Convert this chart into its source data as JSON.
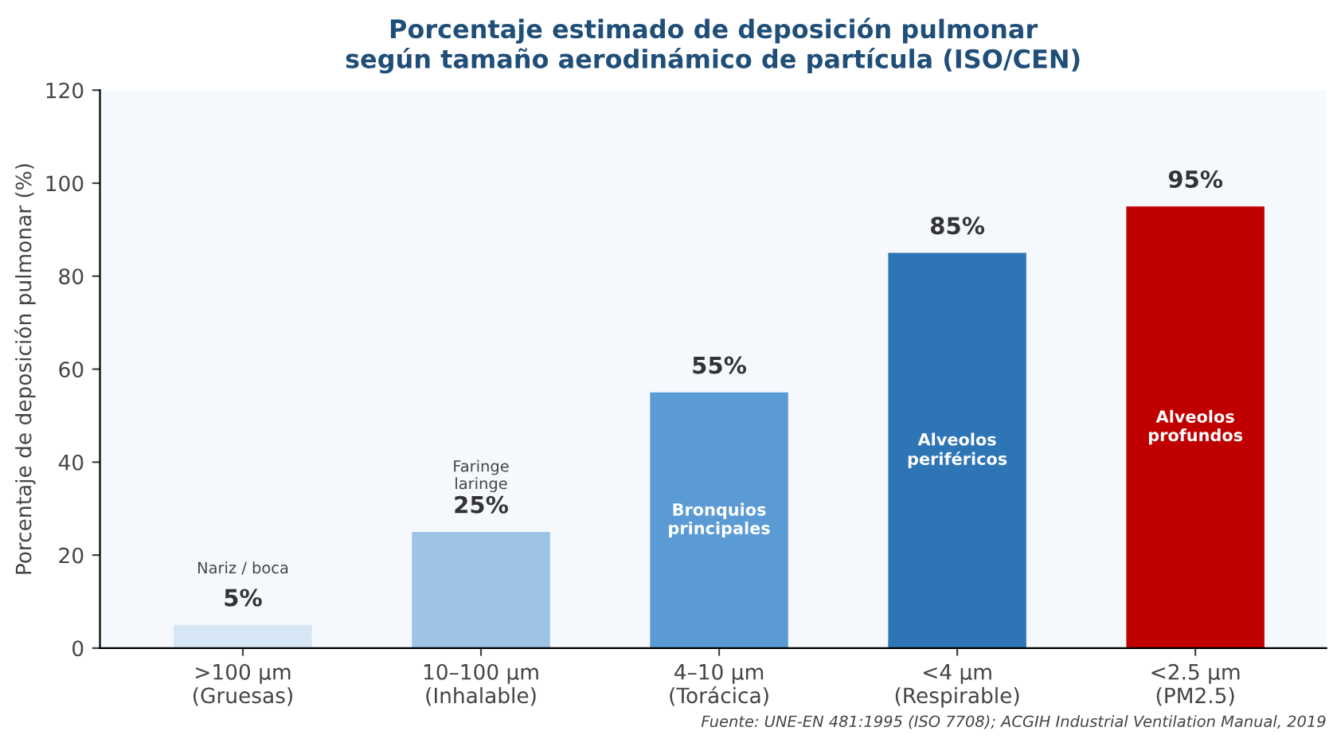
{
  "chart_data": {
    "type": "bar",
    "title": "Porcentaje estimado de deposición pulmonar\nsegún tamaño aerodinámico de partícula (ISO/CEN)",
    "ylabel": "Porcentaje de deposición pulmonar (%)",
    "categories": [
      ">100 µm\n(Gruesas)",
      "10–100 µm\n(Inhalable)",
      "4–10 µm\n(Torácica)",
      "<4 µm\n(Respirable)",
      "<2.5 µm\n(PM2.5)"
    ],
    "values": [
      5,
      25,
      55,
      85,
      95
    ],
    "colors": [
      "#d6e6f5",
      "#9dc3e6",
      "#5b9bd5",
      "#2e75b6",
      "#c00000"
    ],
    "value_labels": [
      "5%",
      "25%",
      "55%",
      "85%",
      "95%"
    ],
    "ylim": [
      0,
      120
    ],
    "yticks": [
      0,
      20,
      40,
      60,
      80,
      100,
      120
    ],
    "grid": false,
    "legend": false,
    "annotations": [
      "Nariz / boca",
      "Faringe\nlaringe",
      "Bronquios\nprincipales",
      "Alveolos\nperiféricos",
      "Alveolos\nprofundos",
      "Fuente: UNE-EN 481:1995 (ISO 7708); ACGIH Industrial Ventilation Manual, 2019"
    ]
  }
}
